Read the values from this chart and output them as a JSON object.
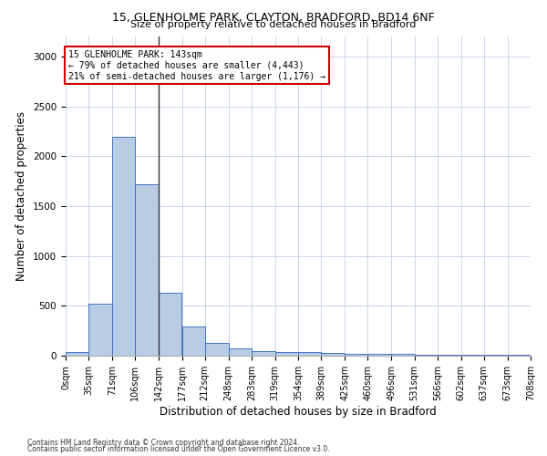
{
  "title1": "15, GLENHOLME PARK, CLAYTON, BRADFORD, BD14 6NF",
  "title2": "Size of property relative to detached houses in Bradford",
  "xlabel": "Distribution of detached houses by size in Bradford",
  "ylabel": "Number of detached properties",
  "footnote1": "Contains HM Land Registry data © Crown copyright and database right 2024.",
  "footnote2": "Contains public sector information licensed under the Open Government Licence v3.0.",
  "bin_edges": [
    0,
    35,
    71,
    106,
    142,
    177,
    212,
    248,
    283,
    319,
    354,
    389,
    425,
    460,
    496,
    531,
    566,
    602,
    637,
    673,
    708
  ],
  "bar_heights": [
    35,
    520,
    2190,
    1720,
    630,
    295,
    130,
    75,
    50,
    35,
    35,
    25,
    20,
    15,
    15,
    10,
    10,
    8,
    5,
    5
  ],
  "bar_color": "#b8cce4",
  "bar_edge_color": "#4472c4",
  "vline_x": 142,
  "vline_color": "#333333",
  "annotation_text": "15 GLENHOLME PARK: 143sqm\n← 79% of detached houses are smaller (4,443)\n21% of semi-detached houses are larger (1,176) →",
  "annotation_box_color": "#ffffff",
  "annotation_box_edge_color": "#cc0000",
  "ylim": [
    0,
    3200
  ],
  "xlim": [
    0,
    708
  ],
  "grid_color": "#c8d4e8",
  "background_color": "#ffffff",
  "tick_label_fontsize": 7.0,
  "axis_label_fontsize": 8.5,
  "title1_fontsize": 9.0,
  "title2_fontsize": 8.0
}
